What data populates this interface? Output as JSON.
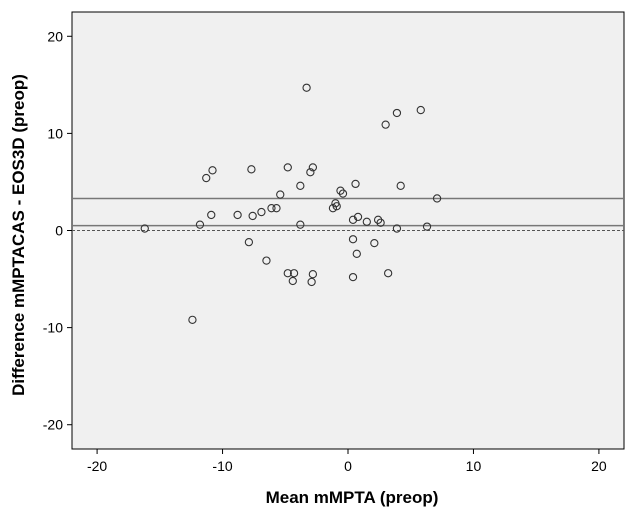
{
  "chart_data": {
    "type": "scatter",
    "title": "",
    "xlabel": "Mean mMPTA (preop)",
    "ylabel": "Difference mMPTACAS - EOS3D (preop)",
    "xlim": [
      -22,
      22
    ],
    "ylim": [
      -22.5,
      22.5
    ],
    "xticks": [
      -20,
      -10,
      0,
      10,
      20
    ],
    "yticks": [
      -20,
      -10,
      0,
      10,
      20
    ],
    "grid": false,
    "background_color": "#f0f0f0",
    "point_color": "#333333",
    "reference_lines": [
      {
        "kind": "upper-limit",
        "y": 3.3,
        "style": "solid"
      },
      {
        "kind": "mean-difference",
        "y": 0.5,
        "style": "solid"
      },
      {
        "kind": "zero",
        "y": 0.0,
        "style": "dashed"
      }
    ],
    "points": [
      {
        "x": -16.2,
        "y": 0.2
      },
      {
        "x": -12.4,
        "y": -9.2
      },
      {
        "x": -11.8,
        "y": 0.6
      },
      {
        "x": -11.3,
        "y": 5.4
      },
      {
        "x": -10.8,
        "y": 6.2
      },
      {
        "x": -10.9,
        "y": 1.6
      },
      {
        "x": -8.8,
        "y": 1.6
      },
      {
        "x": -7.9,
        "y": -1.2
      },
      {
        "x": -7.7,
        "y": 6.3
      },
      {
        "x": -7.6,
        "y": 1.5
      },
      {
        "x": -6.9,
        "y": 1.9
      },
      {
        "x": -6.5,
        "y": -3.1
      },
      {
        "x": -6.1,
        "y": 2.3
      },
      {
        "x": -5.7,
        "y": 2.3
      },
      {
        "x": -5.4,
        "y": 3.7
      },
      {
        "x": -4.8,
        "y": 6.5
      },
      {
        "x": -4.8,
        "y": -4.4
      },
      {
        "x": -4.4,
        "y": -5.2
      },
      {
        "x": -4.3,
        "y": -4.4
      },
      {
        "x": -3.8,
        "y": 4.6
      },
      {
        "x": -3.8,
        "y": 0.6
      },
      {
        "x": -3.3,
        "y": 14.7
      },
      {
        "x": -3.0,
        "y": 6.0
      },
      {
        "x": -2.8,
        "y": 6.5
      },
      {
        "x": -2.8,
        "y": -4.5
      },
      {
        "x": -2.9,
        "y": -5.3
      },
      {
        "x": -1.2,
        "y": 2.3
      },
      {
        "x": -1.0,
        "y": 2.8
      },
      {
        "x": -0.9,
        "y": 2.5
      },
      {
        "x": -0.6,
        "y": 4.1
      },
      {
        "x": -0.4,
        "y": 3.8
      },
      {
        "x": 0.4,
        "y": 1.1
      },
      {
        "x": 0.4,
        "y": -0.9
      },
      {
        "x": 0.4,
        "y": -4.8
      },
      {
        "x": 0.6,
        "y": 4.8
      },
      {
        "x": 0.7,
        "y": -2.4
      },
      {
        "x": 0.8,
        "y": 1.4
      },
      {
        "x": 1.5,
        "y": 0.9
      },
      {
        "x": 2.1,
        "y": -1.3
      },
      {
        "x": 2.4,
        "y": 1.1
      },
      {
        "x": 2.6,
        "y": 0.8
      },
      {
        "x": 3.0,
        "y": 10.9
      },
      {
        "x": 3.2,
        "y": -4.4
      },
      {
        "x": 3.9,
        "y": 12.1
      },
      {
        "x": 3.9,
        "y": 0.2
      },
      {
        "x": 4.2,
        "y": 4.6
      },
      {
        "x": 5.8,
        "y": 12.4
      },
      {
        "x": 6.3,
        "y": 0.4
      },
      {
        "x": 7.1,
        "y": 3.3
      }
    ]
  }
}
